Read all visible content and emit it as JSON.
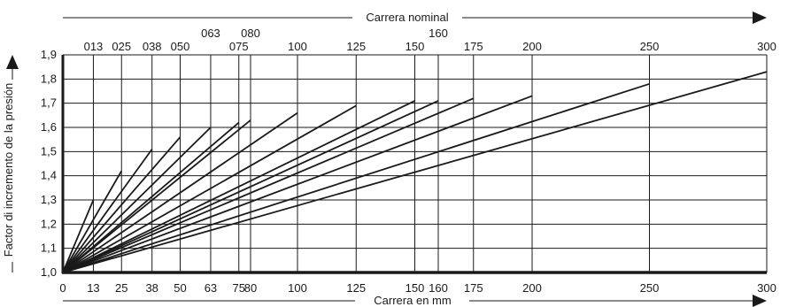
{
  "chart_data": {
    "type": "line",
    "top_axis_title": "Carrera nominal",
    "xlabel": "Carrera en mm",
    "ylabel": "Factor di incremento de la presión",
    "xlim": [
      0,
      300
    ],
    "ylim": [
      1.0,
      1.9
    ],
    "y_ticks": [
      "1,0",
      "1,1",
      "1,2",
      "1,3",
      "1,4",
      "1,5",
      "1,6",
      "1,7",
      "1,8",
      "1,9"
    ],
    "y_tick_values": [
      1.0,
      1.1,
      1.2,
      1.3,
      1.4,
      1.5,
      1.6,
      1.7,
      1.8,
      1.9
    ],
    "x_ticks": [
      "0",
      "13",
      "25",
      "38",
      "50",
      "63",
      "75",
      "80",
      "100",
      "125",
      "150",
      "160",
      "175",
      "200",
      "250",
      "300"
    ],
    "x_tick_values": [
      0,
      13,
      25,
      38,
      50,
      63,
      75,
      80,
      100,
      125,
      150,
      160,
      175,
      200,
      250,
      300
    ],
    "top_ticks": [
      {
        "label": "013",
        "x": 13,
        "raised": false
      },
      {
        "label": "025",
        "x": 25,
        "raised": false
      },
      {
        "label": "038",
        "x": 38,
        "raised": false
      },
      {
        "label": "050",
        "x": 50,
        "raised": false
      },
      {
        "label": "063",
        "x": 63,
        "raised": true
      },
      {
        "label": "075",
        "x": 75,
        "raised": false
      },
      {
        "label": "080",
        "x": 80,
        "raised": true
      },
      {
        "label": "100",
        "x": 100,
        "raised": false
      },
      {
        "label": "125",
        "x": 125,
        "raised": false
      },
      {
        "label": "150",
        "x": 150,
        "raised": false
      },
      {
        "label": "160",
        "x": 160,
        "raised": true
      },
      {
        "label": "175",
        "x": 175,
        "raised": false
      },
      {
        "label": "200",
        "x": 200,
        "raised": false
      },
      {
        "label": "250",
        "x": 250,
        "raised": false
      },
      {
        "label": "300",
        "x": 300,
        "raised": false
      }
    ],
    "series": [
      {
        "x": [
          0,
          13
        ],
        "y": [
          1.0,
          1.3
        ]
      },
      {
        "x": [
          0,
          25
        ],
        "y": [
          1.0,
          1.42
        ]
      },
      {
        "x": [
          0,
          38
        ],
        "y": [
          1.0,
          1.51
        ]
      },
      {
        "x": [
          0,
          50
        ],
        "y": [
          1.0,
          1.56
        ]
      },
      {
        "x": [
          0,
          63
        ],
        "y": [
          1.0,
          1.6
        ]
      },
      {
        "x": [
          0,
          75
        ],
        "y": [
          1.0,
          1.62
        ]
      },
      {
        "x": [
          0,
          80
        ],
        "y": [
          1.0,
          1.63
        ]
      },
      {
        "x": [
          0,
          100
        ],
        "y": [
          1.0,
          1.66
        ]
      },
      {
        "x": [
          0,
          125
        ],
        "y": [
          1.0,
          1.69
        ]
      },
      {
        "x": [
          0,
          150
        ],
        "y": [
          1.0,
          1.71
        ]
      },
      {
        "x": [
          0,
          160
        ],
        "y": [
          1.0,
          1.71
        ]
      },
      {
        "x": [
          0,
          175
        ],
        "y": [
          1.0,
          1.72
        ]
      },
      {
        "x": [
          0,
          200
        ],
        "y": [
          1.0,
          1.73
        ]
      },
      {
        "x": [
          0,
          250
        ],
        "y": [
          1.0,
          1.78
        ]
      },
      {
        "x": [
          0,
          300
        ],
        "y": [
          1.0,
          1.83
        ]
      }
    ],
    "grid": true,
    "colors": {
      "line": "#1a1a1a",
      "grid": "#1a1a1a",
      "background": "#ffffff"
    }
  }
}
